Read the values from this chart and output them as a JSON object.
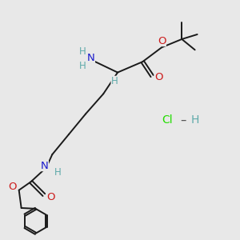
{
  "background_color": "#e8e8e8",
  "bond_color": "#1a1a1a",
  "bond_width": 1.4,
  "atom_colors": {
    "C": "#1a1a1a",
    "H": "#5faaaa",
    "N": "#1a1acc",
    "O": "#cc1a1a",
    "Cl": "#22dd00"
  },
  "font_size": 8.5,
  "figsize": [
    3.0,
    3.0
  ],
  "dpi": 100
}
